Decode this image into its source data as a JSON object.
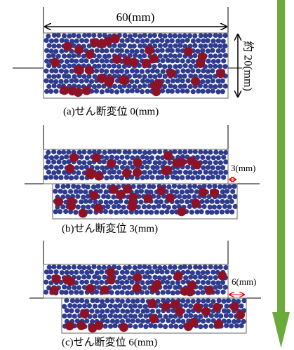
{
  "width_label": "60(mm)",
  "height_label": "約 20(mm)",
  "panels": [
    {
      "caption": "(a)せん断変位 0(mm)"
    },
    {
      "caption": "(b)せん断変位 3(mm)",
      "shift_label": "3(mm)"
    },
    {
      "caption": "(c)せん断変位 6(mm)",
      "shift_label": "6(mm)"
    }
  ]
}
